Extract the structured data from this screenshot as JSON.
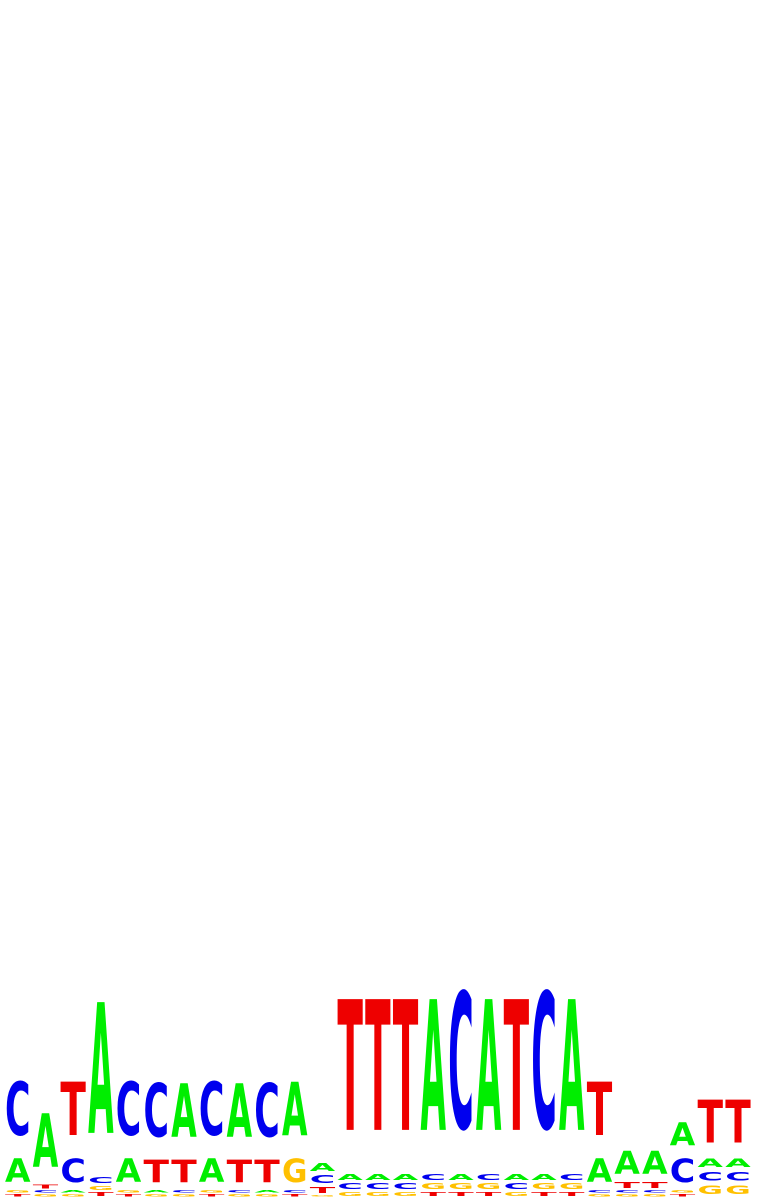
{
  "chart_data": {
    "type": "sequence-logo",
    "alphabet": [
      "A",
      "C",
      "G",
      "T"
    ],
    "colors": {
      "A": "#00ee00",
      "C": "#0000ee",
      "G": "#ffc000",
      "T": "#ee0000"
    },
    "y_max_bits": 2,
    "positions": [
      [
        {
          "l": "T",
          "h": 0.012
        },
        {
          "l": "G",
          "h": 0.012
        },
        {
          "l": "A",
          "h": 0.125
        },
        {
          "l": "C",
          "h": 0.285
        }
      ],
      [
        {
          "l": "G",
          "h": 0.012
        },
        {
          "l": "C",
          "h": 0.012
        },
        {
          "l": "T",
          "h": 0.02
        },
        {
          "l": "A",
          "h": 0.285
        }
      ],
      [
        {
          "l": "G",
          "h": 0.012
        },
        {
          "l": "A",
          "h": 0.012
        },
        {
          "l": "C",
          "h": 0.125
        },
        {
          "l": "T",
          "h": 0.285
        }
      ],
      [
        {
          "l": "T",
          "h": 0.02
        },
        {
          "l": "G",
          "h": 0.02
        },
        {
          "l": "C",
          "h": 0.03
        },
        {
          "l": "A",
          "h": 0.7
        }
      ],
      [
        {
          "l": "T",
          "h": 0.012
        },
        {
          "l": "G",
          "h": 0.012
        },
        {
          "l": "A",
          "h": 0.125
        },
        {
          "l": "C",
          "h": 0.285
        }
      ],
      [
        {
          "l": "G",
          "h": 0.012
        },
        {
          "l": "A",
          "h": 0.012
        },
        {
          "l": "T",
          "h": 0.12
        },
        {
          "l": "C",
          "h": 0.285
        }
      ],
      [
        {
          "l": "G",
          "h": 0.012
        },
        {
          "l": "C",
          "h": 0.012
        },
        {
          "l": "T",
          "h": 0.12
        },
        {
          "l": "A",
          "h": 0.285
        }
      ],
      [
        {
          "l": "T",
          "h": 0.012
        },
        {
          "l": "G",
          "h": 0.012
        },
        {
          "l": "A",
          "h": 0.125
        },
        {
          "l": "C",
          "h": 0.285
        }
      ],
      [
        {
          "l": "G",
          "h": 0.012
        },
        {
          "l": "C",
          "h": 0.012
        },
        {
          "l": "T",
          "h": 0.12
        },
        {
          "l": "A",
          "h": 0.285
        }
      ],
      [
        {
          "l": "G",
          "h": 0.012
        },
        {
          "l": "A",
          "h": 0.012
        },
        {
          "l": "T",
          "h": 0.12
        },
        {
          "l": "C",
          "h": 0.285
        }
      ],
      [
        {
          "l": "T",
          "h": 0.012
        },
        {
          "l": "C",
          "h": 0.012
        },
        {
          "l": "G",
          "h": 0.125
        },
        {
          "l": "A",
          "h": 0.285
        }
      ],
      [
        {
          "l": "G",
          "h": 0.008
        },
        {
          "l": "T",
          "h": 0.03
        },
        {
          "l": "C",
          "h": 0.04
        },
        {
          "l": "A",
          "h": 0.04
        }
      ],
      [
        {
          "l": "G",
          "h": 0.02
        },
        {
          "l": "C",
          "h": 0.03
        },
        {
          "l": "A",
          "h": 0.03
        },
        {
          "l": "T",
          "h": 0.7
        }
      ],
      [
        {
          "l": "G",
          "h": 0.02
        },
        {
          "l": "C",
          "h": 0.03
        },
        {
          "l": "A",
          "h": 0.03
        },
        {
          "l": "T",
          "h": 0.7
        }
      ],
      [
        {
          "l": "G",
          "h": 0.02
        },
        {
          "l": "C",
          "h": 0.03
        },
        {
          "l": "A",
          "h": 0.03
        },
        {
          "l": "T",
          "h": 0.7
        }
      ],
      [
        {
          "l": "T",
          "h": 0.02
        },
        {
          "l": "G",
          "h": 0.03
        },
        {
          "l": "C",
          "h": 0.03
        },
        {
          "l": "A",
          "h": 0.7
        }
      ],
      [
        {
          "l": "T",
          "h": 0.02
        },
        {
          "l": "G",
          "h": 0.03
        },
        {
          "l": "A",
          "h": 0.03
        },
        {
          "l": "C",
          "h": 0.73
        }
      ],
      [
        {
          "l": "T",
          "h": 0.02
        },
        {
          "l": "G",
          "h": 0.03
        },
        {
          "l": "C",
          "h": 0.03
        },
        {
          "l": "A",
          "h": 0.7
        }
      ],
      [
        {
          "l": "G",
          "h": 0.02
        },
        {
          "l": "C",
          "h": 0.03
        },
        {
          "l": "A",
          "h": 0.03
        },
        {
          "l": "T",
          "h": 0.7
        }
      ],
      [
        {
          "l": "T",
          "h": 0.02
        },
        {
          "l": "G",
          "h": 0.03
        },
        {
          "l": "A",
          "h": 0.03
        },
        {
          "l": "C",
          "h": 0.73
        }
      ],
      [
        {
          "l": "T",
          "h": 0.02
        },
        {
          "l": "G",
          "h": 0.03
        },
        {
          "l": "C",
          "h": 0.03
        },
        {
          "l": "A",
          "h": 0.7
        }
      ],
      [
        {
          "l": "G",
          "h": 0.012
        },
        {
          "l": "C",
          "h": 0.012
        },
        {
          "l": "A",
          "h": 0.125
        },
        {
          "l": "T",
          "h": 0.285
        }
      ],
      [
        {
          "l": "G",
          "h": 0.012
        },
        {
          "l": "C",
          "h": 0.012
        },
        {
          "l": "T",
          "h": 0.03
        },
        {
          "l": "A",
          "h": 0.12
        }
      ],
      [
        {
          "l": "G",
          "h": 0.012
        },
        {
          "l": "C",
          "h": 0.012
        },
        {
          "l": "T",
          "h": 0.03
        },
        {
          "l": "A",
          "h": 0.12
        }
      ],
      [
        {
          "l": "T",
          "h": 0.012
        },
        {
          "l": "G",
          "h": 0.012
        },
        {
          "l": "C",
          "h": 0.125
        },
        {
          "l": "A",
          "h": 0.12
        }
      ],
      [
        {
          "l": "G",
          "h": 0.045
        },
        {
          "l": "C",
          "h": 0.045
        },
        {
          "l": "A",
          "h": 0.045
        },
        {
          "l": "T",
          "h": 0.23
        }
      ],
      [
        {
          "l": "G",
          "h": 0.045
        },
        {
          "l": "C",
          "h": 0.045
        },
        {
          "l": "A",
          "h": 0.045
        },
        {
          "l": "T",
          "h": 0.23
        }
      ]
    ]
  }
}
